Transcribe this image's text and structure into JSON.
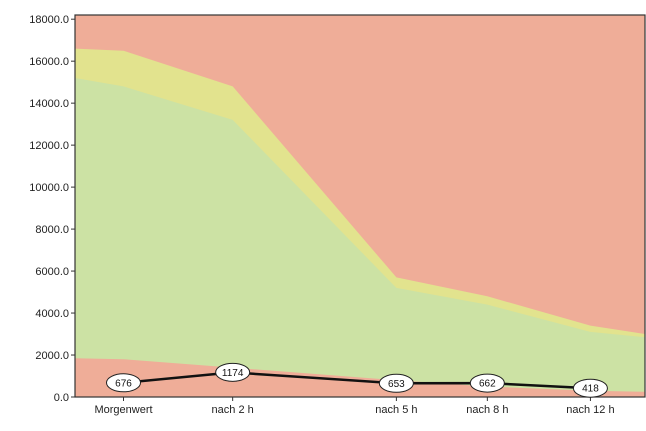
{
  "chart_data": {
    "type": "area",
    "categories": [
      "Morgenwert",
      "nach 2 h",
      "nach 5 h",
      "nach 8 h",
      "nach 12 h"
    ],
    "x_positions": [
      0.5,
      1.625,
      3.3125,
      4.25,
      5.3125
    ],
    "y_ticks": [
      "0.0",
      "2000.0",
      "4000.0",
      "6000.0",
      "8000.0",
      "10000.0",
      "12000.0",
      "14000.0",
      "16000.0",
      "18000.0"
    ],
    "ylim": [
      0,
      18200
    ],
    "xlim": [
      0,
      5.875
    ],
    "grid": false,
    "background_color": "#efad98",
    "bands": [
      {
        "color": "#e2e38e",
        "lower": [
          3300,
          2300,
          1200,
          1000,
          650
        ],
        "upper": [
          16500,
          14800,
          5700,
          4800,
          3400
        ],
        "lower_left": 3350,
        "upper_left": 16600,
        "lower_right": 500,
        "upper_right": 3000
      },
      {
        "color": "#cce2a4",
        "lower": [
          1800,
          1400,
          800,
          500,
          300
        ],
        "upper": [
          14800,
          13200,
          5200,
          4400,
          3100
        ],
        "lower_left": 1850,
        "upper_left": 15200,
        "lower_right": 250,
        "upper_right": 2850
      }
    ],
    "series": [
      {
        "values": [
          676,
          1174,
          653,
          662,
          418
        ],
        "labels": [
          "676",
          "1174",
          "653",
          "662",
          "418"
        ],
        "color": "#111111"
      }
    ]
  }
}
